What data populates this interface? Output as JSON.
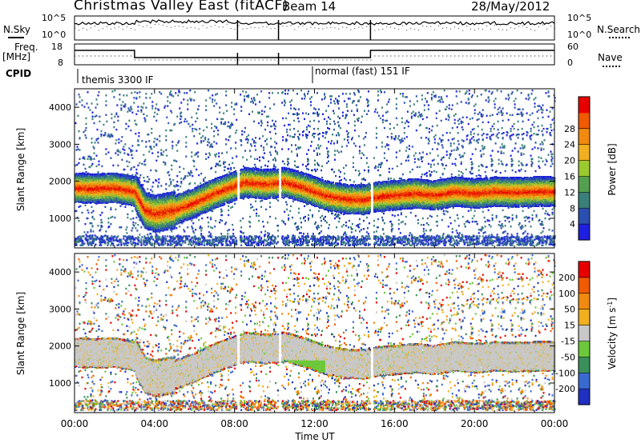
{
  "header": {
    "title": "Christmas Valley East (fitACF)",
    "beam": "Beam 14",
    "date": "28/May/2012"
  },
  "top_panels": {
    "nsky_label": "N.Sky",
    "nsky_ticks": [
      "10^5",
      "10^0"
    ],
    "nsearch_label": "N.Search",
    "nsearch_ticks": [
      "10^5",
      "10^0"
    ],
    "freq_label": "Freq.",
    "freq_unit": "[MHz]",
    "freq_ticks": [
      "18",
      "8"
    ],
    "nave_label": "Nave",
    "nave_ticks": [
      "60",
      "0"
    ],
    "cpid_label": "CPID",
    "cpid_entries": [
      "themis 3300 IF",
      "normal (fast) 151 IF"
    ]
  },
  "chart_data": [
    {
      "type": "heatmap",
      "name": "power",
      "ylabel": "Slant Range [km]",
      "yticks": [
        1000,
        2000,
        3000,
        4000
      ],
      "ylim": [
        200,
        4500
      ],
      "xlim": [
        0,
        24
      ],
      "xticks": [
        0,
        4,
        8,
        12,
        16,
        20,
        24
      ],
      "xtick_labels": [
        "00:00",
        "04:00",
        "08:00",
        "12:00",
        "16:00",
        "20:00",
        "00:00"
      ],
      "colorbar": {
        "label": "Power [dB]",
        "ticks": [
          "4",
          "8",
          "12",
          "16",
          "20",
          "24",
          "28"
        ],
        "colors": [
          "#1f1fe0",
          "#2a4fb0",
          "#3a7f7a",
          "#55a050",
          "#9cc92e",
          "#f0b020",
          "#f08a10",
          "#f05a00",
          "#e80000"
        ]
      },
      "band_center_km": [
        [
          0.0,
          1800
        ],
        [
          1.0,
          1780
        ],
        [
          2.0,
          1800
        ],
        [
          3.0,
          1700
        ],
        [
          3.5,
          1200
        ],
        [
          4.0,
          1100
        ],
        [
          5.0,
          1200
        ],
        [
          6.0,
          1400
        ],
        [
          7.0,
          1650
        ],
        [
          8.0,
          1850
        ],
        [
          8.5,
          1950
        ],
        [
          9.5,
          1900
        ],
        [
          10.5,
          1950
        ],
        [
          11.5,
          1800
        ],
        [
          12.5,
          1600
        ],
        [
          13.5,
          1500
        ],
        [
          14.5,
          1480
        ],
        [
          15.0,
          1550
        ],
        [
          16.0,
          1600
        ],
        [
          17.0,
          1650
        ],
        [
          18.0,
          1600
        ],
        [
          19.0,
          1700
        ],
        [
          20.0,
          1650
        ],
        [
          21.0,
          1700
        ],
        [
          22.0,
          1680
        ],
        [
          23.0,
          1700
        ],
        [
          24.0,
          1700
        ]
      ]
    },
    {
      "type": "heatmap",
      "name": "velocity",
      "ylabel": "Slant Range [km]",
      "yticks": [
        1000,
        2000,
        3000,
        4000
      ],
      "ylim": [
        200,
        4500
      ],
      "xlim": [
        0,
        24
      ],
      "xticks": [
        0,
        4,
        8,
        12,
        16,
        20,
        24
      ],
      "xtick_labels": [
        "00:00",
        "04:00",
        "08:00",
        "12:00",
        "16:00",
        "20:00",
        "00:00"
      ],
      "xlabel": "Time UT",
      "colorbar": {
        "label": "Velocity [m s",
        "label_sup": "-1",
        "label_close": "]",
        "ticks": [
          "200",
          "100",
          "50",
          "15",
          "-15",
          "-50",
          "-100",
          "-200"
        ],
        "colors": [
          "#2030c0",
          "#3a6ad0",
          "#3a8f5a",
          "#6cc83a",
          "#c8c8c8",
          "#f0b020",
          "#f08a10",
          "#f05a00",
          "#e80000"
        ]
      }
    }
  ]
}
